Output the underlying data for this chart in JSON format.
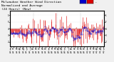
{
  "title_line1": "Milwaukee Weather Wind Direction",
  "title_line2": "Normalized and Average",
  "title_line3": "(24 Hours) (New)",
  "background_color": "#f0f0f0",
  "plot_bg_color": "#ffffff",
  "bar_color": "#dd0000",
  "avg_color": "#0000cc",
  "legend_blue_color": "#0000cc",
  "legend_red_color": "#dd0000",
  "num_points": 200,
  "seed": 7,
  "ylim": [
    -1.6,
    1.6
  ],
  "grid_color": "#bbbbbb",
  "title_fontsize": 3.2,
  "tick_fontsize": 2.0,
  "right_tick_labels": [
    "1",
    "F",
    "4",
    "3",
    "2"
  ],
  "right_tick_values": [
    1.2,
    0.6,
    0.0,
    -0.6,
    -1.2
  ],
  "num_xticks": 30
}
